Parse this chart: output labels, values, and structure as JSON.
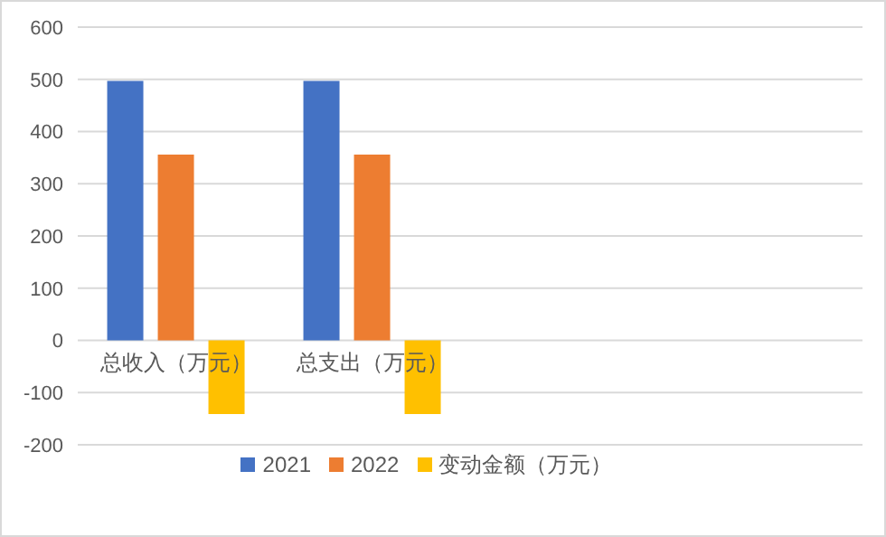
{
  "chart_data": {
    "type": "bar",
    "categories": [
      "总收入（万元）",
      "总支出（万元）",
      null,
      null
    ],
    "series": [
      {
        "name": "2021",
        "color": "#4472c4",
        "values": [
          497,
          497,
          null,
          null
        ]
      },
      {
        "name": "2022",
        "color": "#ed7d31",
        "values": [
          356,
          356,
          null,
          null
        ]
      },
      {
        "name": "变动金额（万元）",
        "color": "#ffc000",
        "values": [
          -141,
          -141,
          null,
          null
        ]
      }
    ],
    "ylim": [
      -200,
      600
    ],
    "yticks": [
      -200,
      -100,
      0,
      100,
      200,
      300,
      400,
      500,
      600
    ],
    "grid": "y",
    "legend": "bottom"
  }
}
